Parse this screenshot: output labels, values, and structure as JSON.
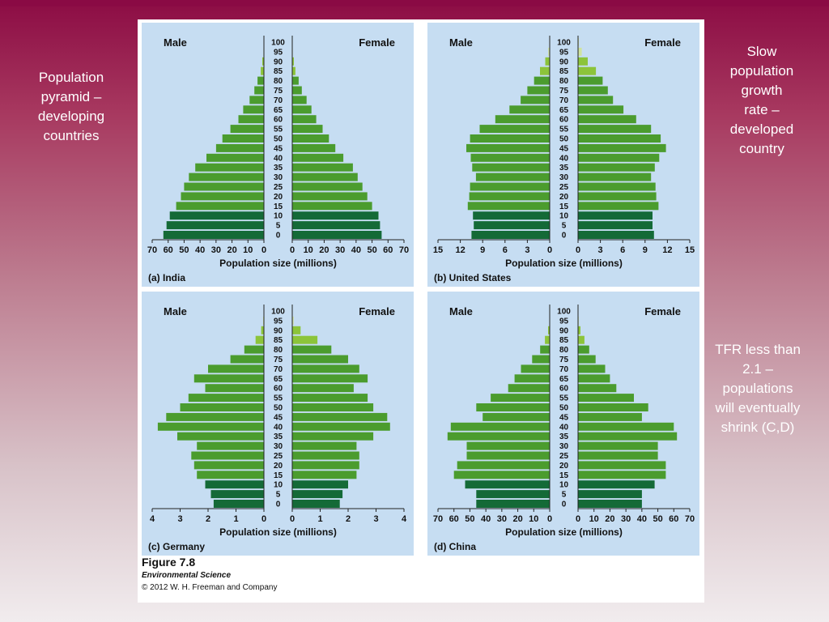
{
  "slide": {
    "note_left": "Population\npyramid –\ndeveloping\ncountries",
    "note_right_top": "Slow\npopulation\ngrowth\nrate –\ndeveloped\ncountry",
    "note_right_bottom": "TFR less than\n2.1 –\npopulations\nwill eventually\nshrink (C,D)"
  },
  "figure": {
    "title": "Figure 7.8",
    "subtitle": "Environmental Science",
    "copyright": "© 2012 W. H. Freeman and Company"
  },
  "colors": {
    "panel_bg": "#c6ddf2",
    "bar_dark": "#146a37",
    "bar_mid": "#4b9c2e",
    "bar_light": "#8cc43a",
    "bar_pale": "#cfe3a0"
  },
  "chart_data": [
    {
      "type": "bar",
      "orientation": "horizontal-pyramid",
      "panel_label": "(a) India",
      "left_label": "Male",
      "right_label": "Female",
      "xlabel": "Population size (millions)",
      "xlim": [
        0,
        70
      ],
      "ticks": [
        0,
        10,
        20,
        30,
        40,
        50,
        60,
        70
      ],
      "age_categories": [
        "0",
        "5",
        "10",
        "15",
        "20",
        "25",
        "30",
        "35",
        "40",
        "45",
        "50",
        "55",
        "60",
        "65",
        "70",
        "75",
        "80",
        "85",
        "90",
        "95",
        "100"
      ],
      "series": [
        {
          "name": "Male",
          "values": [
            63,
            61,
            59,
            55,
            52,
            50,
            47,
            43,
            36,
            30,
            26,
            21,
            16,
            13,
            9,
            6,
            4,
            2,
            1,
            0.3,
            0.1
          ]
        },
        {
          "name": "Female",
          "values": [
            56,
            55,
            54,
            50,
            47,
            44,
            41,
            38,
            32,
            27,
            23,
            19,
            15,
            12,
            9,
            6,
            4,
            2,
            1,
            0.3,
            0.1
          ]
        }
      ]
    },
    {
      "type": "bar",
      "orientation": "horizontal-pyramid",
      "panel_label": "(b) United States",
      "left_label": "Male",
      "right_label": "Female",
      "xlabel": "Population size (millions)",
      "xlim": [
        0,
        15
      ],
      "ticks": [
        0,
        3,
        6,
        9,
        12,
        15
      ],
      "age_categories": [
        "0",
        "5",
        "10",
        "15",
        "20",
        "25",
        "30",
        "35",
        "40",
        "45",
        "50",
        "55",
        "60",
        "65",
        "70",
        "75",
        "80",
        "85",
        "90",
        "95",
        "100"
      ],
      "series": [
        {
          "name": "Male",
          "values": [
            10.5,
            10.2,
            10.3,
            11.0,
            10.8,
            10.7,
            9.9,
            10.4,
            10.6,
            11.2,
            10.7,
            9.4,
            7.3,
            5.4,
            3.9,
            3.0,
            2.1,
            1.3,
            0.6,
            0.2,
            0.05
          ]
        },
        {
          "name": "Female",
          "values": [
            10.2,
            10.0,
            10.0,
            10.8,
            10.5,
            10.4,
            9.8,
            10.3,
            10.9,
            11.8,
            11.1,
            9.8,
            7.8,
            6.1,
            4.7,
            4.0,
            3.3,
            2.4,
            1.3,
            0.5,
            0.1
          ]
        }
      ]
    },
    {
      "type": "bar",
      "orientation": "horizontal-pyramid",
      "panel_label": "(c) Germany",
      "left_label": "Male",
      "right_label": "Female",
      "xlabel": "Population size (millions)",
      "xlim": [
        0,
        4
      ],
      "ticks": [
        0,
        1,
        2,
        3,
        4
      ],
      "age_categories": [
        "0",
        "5",
        "10",
        "15",
        "20",
        "25",
        "30",
        "35",
        "40",
        "45",
        "50",
        "55",
        "60",
        "65",
        "70",
        "75",
        "80",
        "85",
        "90",
        "95",
        "100"
      ],
      "series": [
        {
          "name": "Male",
          "values": [
            1.8,
            1.9,
            2.1,
            2.4,
            2.5,
            2.6,
            2.4,
            3.1,
            3.8,
            3.5,
            3.0,
            2.7,
            2.1,
            2.5,
            2.0,
            1.2,
            0.7,
            0.3,
            0.1,
            0.03,
            0.01
          ]
        },
        {
          "name": "Female",
          "values": [
            1.7,
            1.8,
            2.0,
            2.3,
            2.4,
            2.4,
            2.3,
            2.9,
            3.5,
            3.4,
            2.9,
            2.7,
            2.2,
            2.7,
            2.4,
            2.0,
            1.4,
            0.9,
            0.3,
            0.05,
            0.01
          ]
        }
      ]
    },
    {
      "type": "bar",
      "orientation": "horizontal-pyramid",
      "panel_label": "(d) China",
      "left_label": "Male",
      "right_label": "Female",
      "xlabel": "Population size (millions)",
      "xlim": [
        0,
        70
      ],
      "ticks": [
        0,
        10,
        20,
        30,
        40,
        50,
        60,
        70
      ],
      "age_categories": [
        "0",
        "5",
        "10",
        "15",
        "20",
        "25",
        "30",
        "35",
        "40",
        "45",
        "50",
        "55",
        "60",
        "65",
        "70",
        "75",
        "80",
        "85",
        "90",
        "95",
        "100"
      ],
      "series": [
        {
          "name": "Male",
          "values": [
            46,
            46,
            53,
            60,
            58,
            52,
            52,
            64,
            62,
            42,
            46,
            37,
            26,
            22,
            18,
            11,
            6,
            3,
            1,
            0.2,
            0.05
          ]
        },
        {
          "name": "Female",
          "values": [
            40,
            40,
            48,
            55,
            55,
            50,
            50,
            62,
            60,
            40,
            44,
            35,
            24,
            20,
            17,
            11,
            7,
            4,
            1.5,
            0.4,
            0.1
          ]
        }
      ]
    }
  ]
}
